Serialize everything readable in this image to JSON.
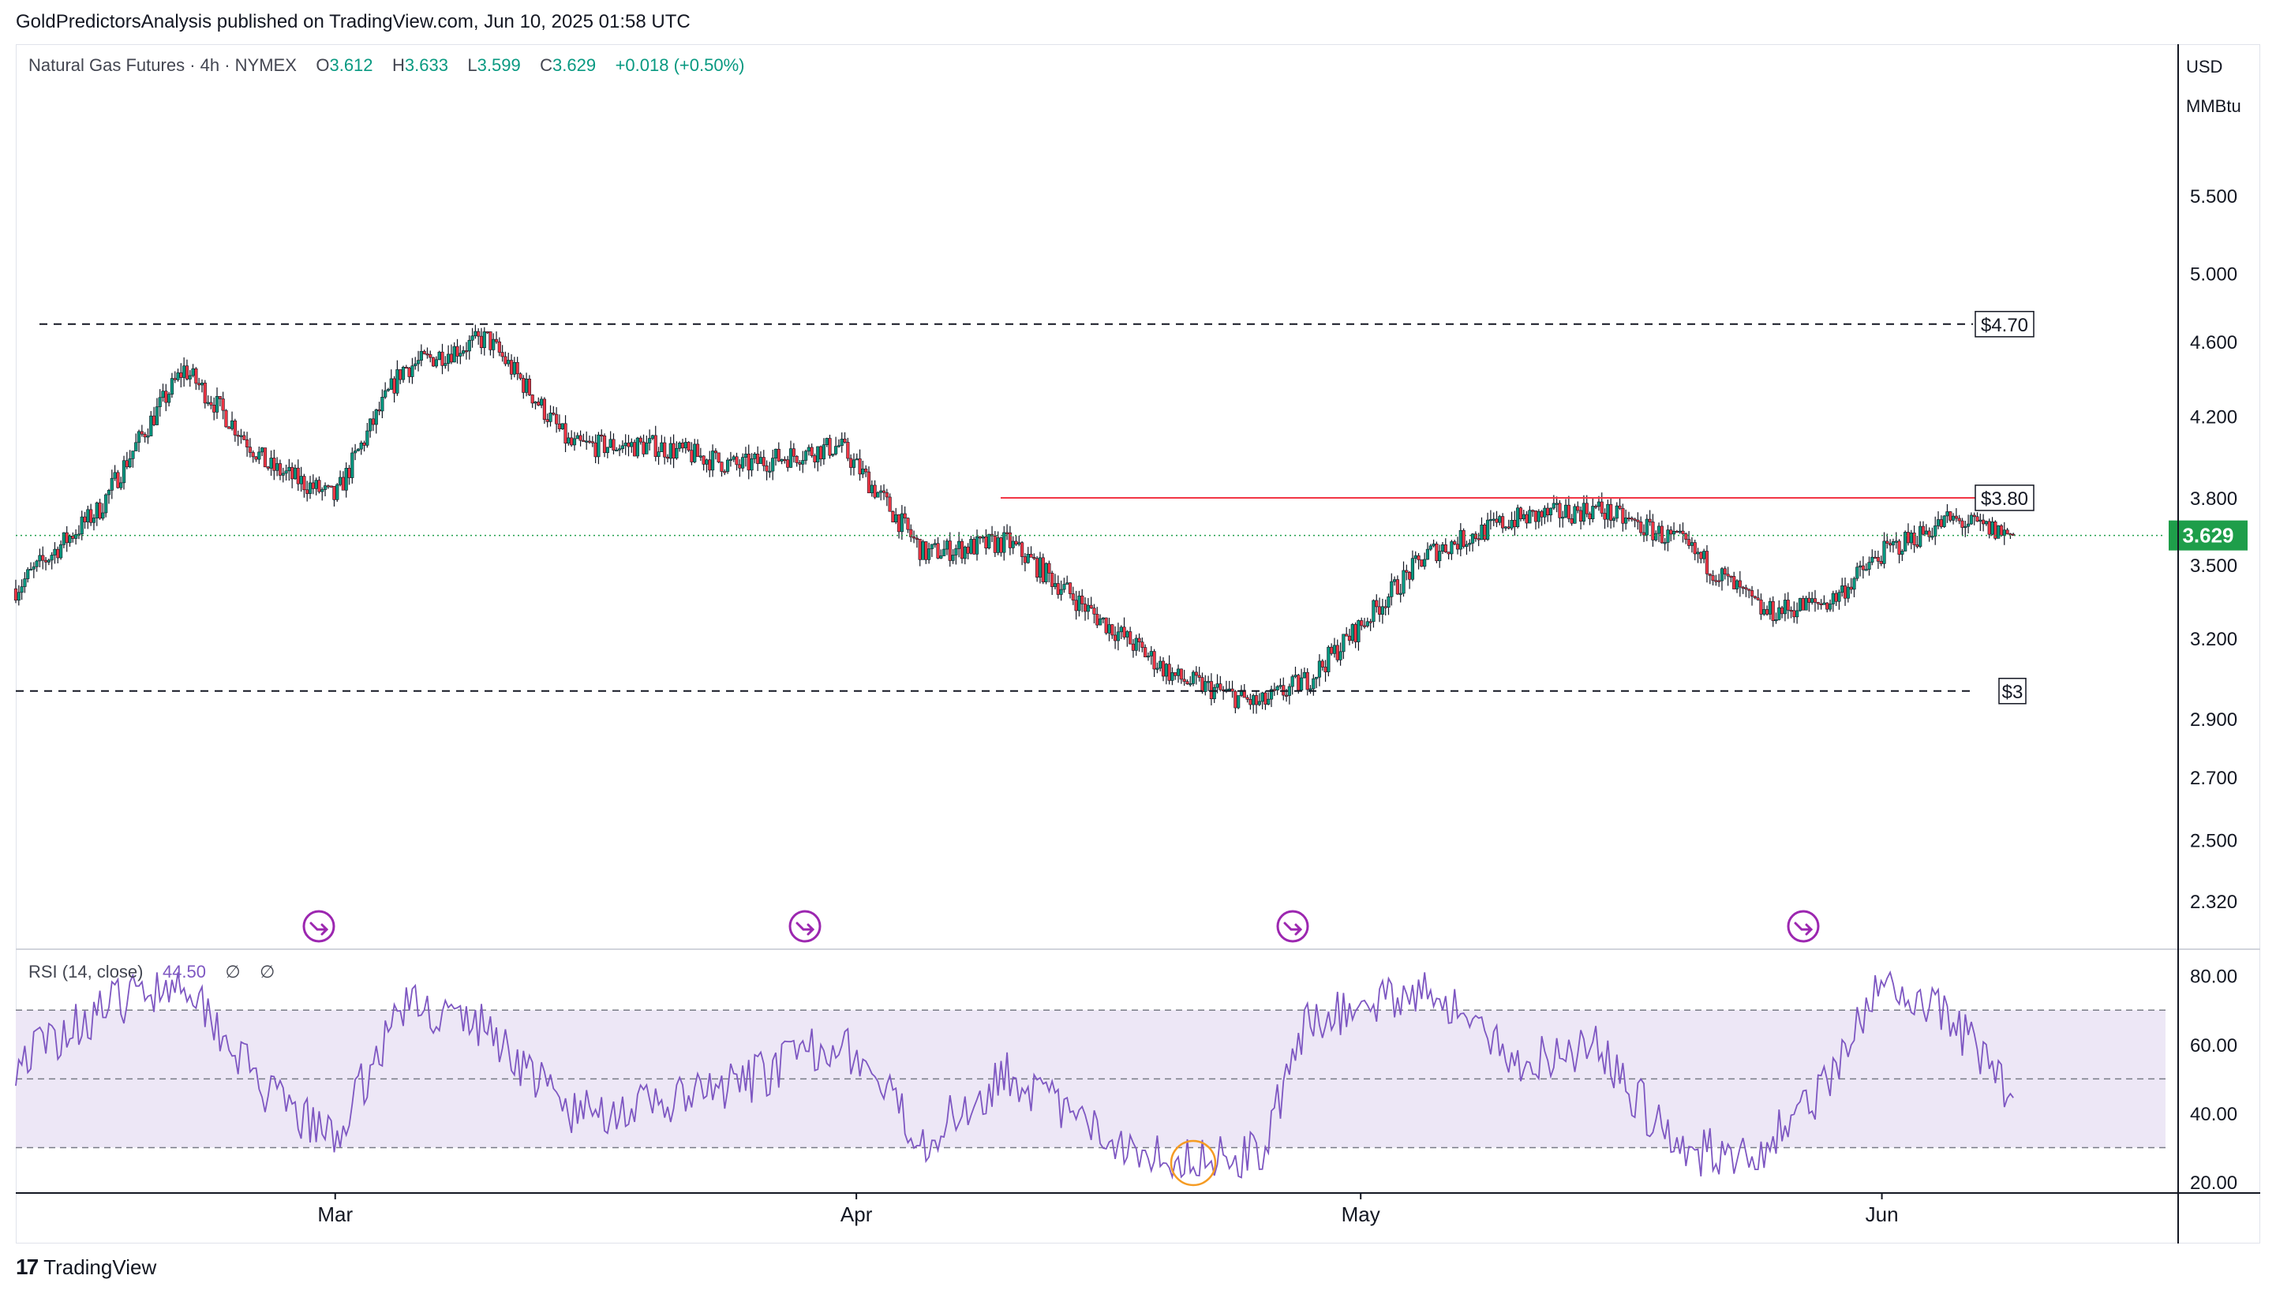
{
  "publisher_line": "GoldPredictorsAnalysis published on TradingView.com, Jun 10, 2025 01:58 UTC",
  "legend": {
    "symbol": "Natural Gas Futures · 4h · NYMEX",
    "open_label": "O",
    "open": "3.612",
    "high_label": "H",
    "high": "3.633",
    "low_label": "L",
    "low": "3.599",
    "close_label": "C",
    "close": "3.629",
    "change": "+0.018 (+0.50%)"
  },
  "rsi_legend": {
    "label": "RSI (14, close)",
    "value": "44.50",
    "extra1": "∅",
    "extra2": "∅"
  },
  "axis": {
    "currency": "USD",
    "unit": "MMBtu"
  },
  "footer": {
    "logo_mark": "17",
    "logo_text": "TradingView"
  },
  "colors": {
    "up": "#089981",
    "down": "#f23645",
    "candle_body": "#131722",
    "rsi": "#7e57c2",
    "rsi_band": "#ede7f6",
    "resistance": "#f23645",
    "last_price": "#1e9e4a"
  },
  "chart_data": [
    {
      "type": "candlestick",
      "title": "Natural Gas Futures · 4h · NYMEX",
      "ylabel": "USD / MMBtu",
      "y_scale": "log",
      "yticks": [
        "5.500",
        "5.000",
        "4.600",
        "4.200",
        "3.800",
        "3.500",
        "3.200",
        "2.900",
        "2.700",
        "2.500",
        "2.320"
      ],
      "xticks": [
        "Mar",
        "Apr",
        "May",
        "Jun"
      ],
      "last_price": 3.629,
      "last_price_label": "3.629",
      "levels": [
        {
          "label": "$4.70",
          "value": 4.7,
          "style": "dashed"
        },
        {
          "label": "$3.80",
          "value": 3.8,
          "style": "solid-red"
        },
        {
          "label": "$3",
          "value": 3.0,
          "style": "dashed"
        }
      ],
      "event_markers": 4,
      "approx_close_path": {
        "x": [
          "Feb 10",
          "Feb 15",
          "Feb 20",
          "Feb 25",
          "Mar 1",
          "Mar 5",
          "Mar 10",
          "Mar 15",
          "Mar 20",
          "Mar 25",
          "Mar 31",
          "Apr 5",
          "Apr 10",
          "Apr 15",
          "Apr 20",
          "Apr 25",
          "Apr 28",
          "May 1",
          "May 5",
          "May 10",
          "May 15",
          "May 20",
          "May 25",
          "May 29",
          "Jun 1",
          "Jun 5",
          "Jun 9"
        ],
        "y": [
          3.4,
          3.75,
          4.45,
          3.95,
          3.8,
          4.45,
          4.62,
          4.05,
          4.05,
          3.95,
          4.05,
          3.55,
          3.6,
          3.3,
          3.05,
          2.95,
          3.05,
          3.25,
          3.55,
          3.7,
          3.75,
          3.6,
          3.3,
          3.35,
          3.55,
          3.7,
          3.629
        ]
      }
    },
    {
      "type": "line",
      "title": "RSI (14, close)",
      "yticks": [
        "80.00",
        "60.00",
        "40.00",
        "20.00"
      ],
      "bands": [
        70,
        50,
        30
      ],
      "ylim": [
        20,
        82
      ],
      "last_value": 44.5,
      "approx_path": {
        "x": [
          "Feb 10",
          "Feb 15",
          "Feb 20",
          "Feb 25",
          "Mar 1",
          "Mar 5",
          "Mar 10",
          "Mar 15",
          "Mar 20",
          "Mar 25",
          "Mar 31",
          "Apr 5",
          "Apr 10",
          "Apr 15",
          "Apr 20",
          "Apr 25",
          "Apr 28",
          "May 1",
          "May 5",
          "May 10",
          "May 15",
          "May 20",
          "May 25",
          "May 29",
          "Jun 1",
          "Jun 5",
          "Jun 9"
        ],
        "y": [
          55,
          70,
          80,
          45,
          32,
          72,
          65,
          40,
          42,
          48,
          62,
          32,
          52,
          35,
          27,
          28,
          68,
          70,
          78,
          55,
          60,
          28,
          30,
          50,
          78,
          68,
          44.5
        ]
      }
    }
  ]
}
